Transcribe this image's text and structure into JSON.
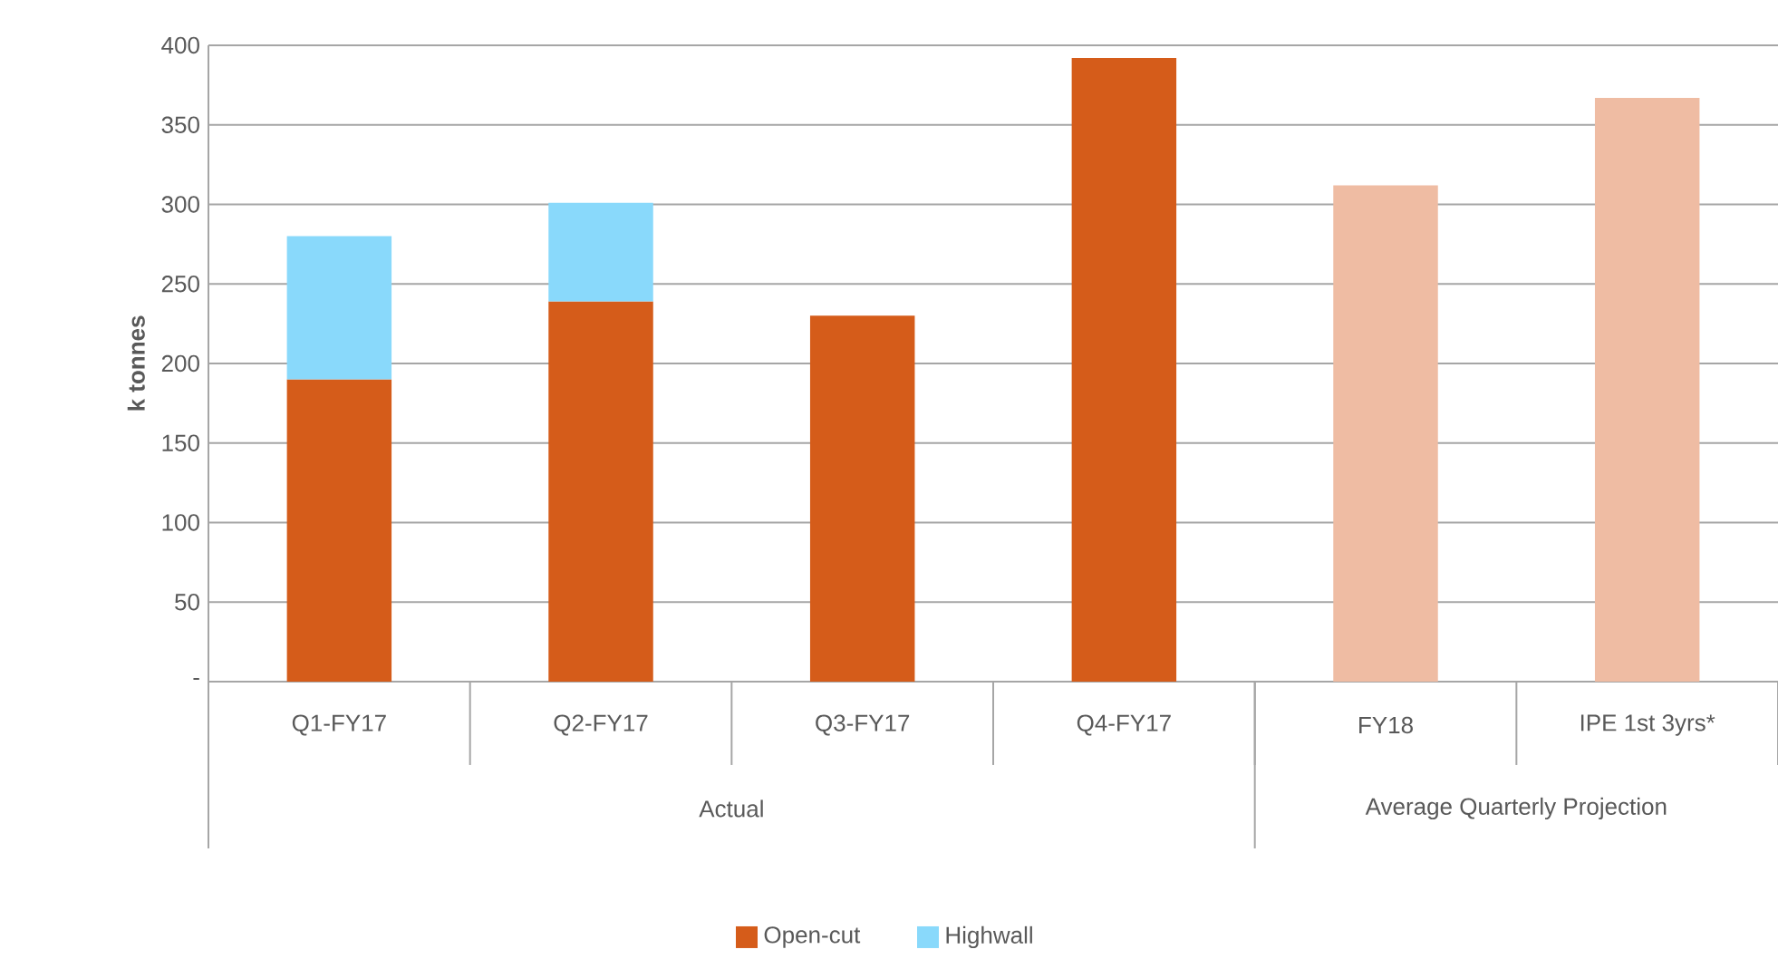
{
  "chart_data": {
    "type": "bar",
    "stacked": true,
    "ylabel": "**k tonnes**",
    "categories": [
      "Q1-FY17",
      "Q2-FY17",
      "Q3-FY17",
      "Q4-FY17",
      "FY18",
      "IPE 1st 3yrs*"
    ],
    "annotations": [
      "Actual",
      "Average Quarterly Projection"
    ],
    "series": [
      {
        "name": "Open-cut",
        "color": "#d55c1a",
        "colors": [
          "#d55c1a",
          "#d55c1a",
          "#d55c1a",
          "#d55c1a",
          "#efbca3",
          "#efbca3"
        ],
        "values": [
          190,
          239,
          230,
          392,
          312,
          367
        ]
      },
      {
        "name": "Highwall",
        "color": "#89d9fb",
        "values": [
          90,
          62,
          null,
          null,
          null,
          null
        ]
      }
    ],
    "ylim": [
      0,
      400
    ],
    "yticks": [
      {
        "value": 0,
        "label": "-"
      },
      50,
      100,
      150,
      200,
      250,
      300,
      350,
      400
    ],
    "grid": "y",
    "legend": "bottom"
  }
}
